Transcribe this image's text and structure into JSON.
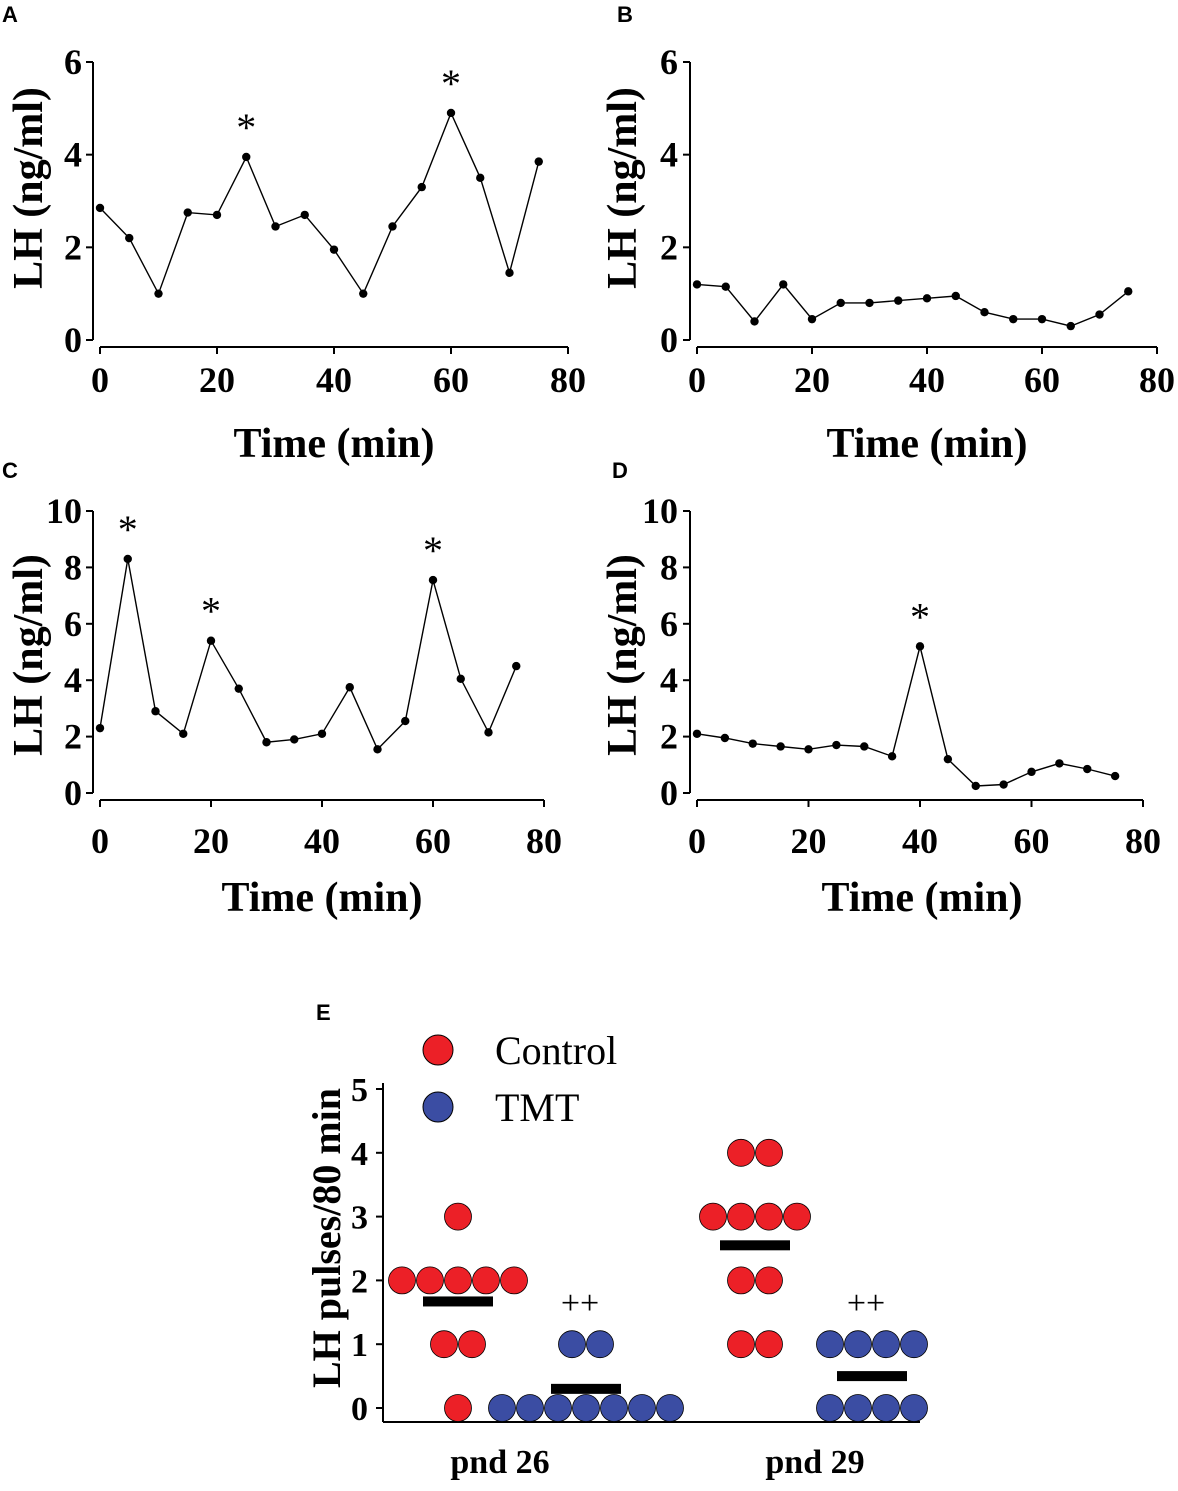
{
  "colors": {
    "control": "#ec2027",
    "tmt": "#3b4da3",
    "ink": "#000000"
  },
  "chart_data": [
    {
      "id": "A",
      "type": "line",
      "panel_label": "A",
      "xlabel": "Time (min)",
      "ylabel": "LH (ng/ml)",
      "xlim": [
        0,
        80
      ],
      "ylim": [
        0,
        6
      ],
      "xticks": [
        "0",
        "20",
        "40",
        "60",
        "80"
      ],
      "yticks": [
        "0",
        "2",
        "4",
        "6"
      ],
      "x": [
        0,
        5,
        10,
        15,
        20,
        25,
        30,
        35,
        40,
        45,
        50,
        55,
        60,
        65,
        70,
        75
      ],
      "values": [
        2.85,
        2.2,
        1.0,
        2.75,
        2.7,
        3.95,
        2.45,
        2.7,
        1.95,
        1.0,
        2.45,
        3.3,
        4.9,
        3.5,
        1.45,
        3.85
      ],
      "pulses": [
        {
          "x": 25,
          "y": 3.95,
          "mark": "*"
        },
        {
          "x": 60,
          "y": 4.9,
          "mark": "*"
        }
      ]
    },
    {
      "id": "B",
      "type": "line",
      "panel_label": "B",
      "xlabel": "Time (min)",
      "ylabel": "LH (ng/ml)",
      "xlim": [
        0,
        80
      ],
      "ylim": [
        0,
        6
      ],
      "xticks": [
        "0",
        "20",
        "40",
        "60",
        "80"
      ],
      "yticks": [
        "0",
        "2",
        "4",
        "6"
      ],
      "x": [
        0,
        5,
        10,
        15,
        20,
        25,
        30,
        35,
        40,
        45,
        50,
        55,
        60,
        65,
        70,
        75
      ],
      "values": [
        1.2,
        1.15,
        0.4,
        1.2,
        0.45,
        0.8,
        0.8,
        0.85,
        0.9,
        0.95,
        0.6,
        0.45,
        0.45,
        0.3,
        0.55,
        1.05
      ],
      "pulses": []
    },
    {
      "id": "C",
      "type": "line",
      "panel_label": "C",
      "xlabel": "Time (min)",
      "ylabel": "LH (ng/ml)",
      "xlim": [
        0,
        80
      ],
      "ylim": [
        0,
        10
      ],
      "xticks": [
        "0",
        "20",
        "40",
        "60",
        "80"
      ],
      "yticks": [
        "0",
        "2",
        "4",
        "6",
        "8",
        "10"
      ],
      "x": [
        0,
        5,
        10,
        15,
        20,
        25,
        30,
        35,
        40,
        45,
        50,
        55,
        60,
        65,
        70,
        75
      ],
      "values": [
        2.3,
        8.3,
        2.9,
        2.1,
        5.4,
        3.7,
        1.8,
        1.9,
        2.1,
        3.75,
        1.55,
        2.55,
        7.55,
        4.05,
        2.15,
        4.5
      ],
      "pulses": [
        {
          "x": 5,
          "y": 8.3,
          "mark": "*"
        },
        {
          "x": 20,
          "y": 5.4,
          "mark": "*"
        },
        {
          "x": 60,
          "y": 7.55,
          "mark": "*"
        }
      ]
    },
    {
      "id": "D",
      "type": "line",
      "panel_label": "D",
      "xlabel": "Time (min)",
      "ylabel": "LH (ng/ml)",
      "xlim": [
        0,
        80
      ],
      "ylim": [
        0,
        10
      ],
      "xticks": [
        "0",
        "20",
        "40",
        "60",
        "80"
      ],
      "yticks": [
        "0",
        "2",
        "4",
        "6",
        "8",
        "10"
      ],
      "x": [
        0,
        5,
        10,
        15,
        20,
        25,
        30,
        35,
        40,
        45,
        50,
        55,
        60,
        65,
        70,
        75
      ],
      "values": [
        2.1,
        1.95,
        1.75,
        1.65,
        1.55,
        1.7,
        1.65,
        1.3,
        5.2,
        1.2,
        0.25,
        0.3,
        0.75,
        1.05,
        0.85,
        0.6
      ],
      "pulses": [
        {
          "x": 40,
          "y": 5.2,
          "mark": "*"
        }
      ]
    },
    {
      "id": "E",
      "type": "scatter",
      "panel_label": "E",
      "ylabel": "LH pulses/80 min",
      "ylim": [
        0,
        5
      ],
      "yticks": [
        "0",
        "1",
        "2",
        "3",
        "4",
        "5"
      ],
      "categories": [
        "pnd 26",
        "pnd 29"
      ],
      "legend": [
        {
          "name": "Control",
          "color": "#ec2027"
        },
        {
          "name": "TMT",
          "color": "#3b4da3"
        }
      ],
      "groups": [
        {
          "category": "pnd 26",
          "series": "Control",
          "color": "#ec2027",
          "values": [
            0,
            1,
            1,
            2,
            2,
            2,
            2,
            2,
            3
          ],
          "mean": 1.67,
          "annotation": ""
        },
        {
          "category": "pnd 26",
          "series": "TMT",
          "color": "#3b4da3",
          "values": [
            0,
            0,
            0,
            0,
            0,
            0,
            0,
            1,
            1
          ],
          "mean": 0.3,
          "annotation": "++"
        },
        {
          "category": "pnd 29",
          "series": "Control",
          "color": "#ec2027",
          "values": [
            1,
            1,
            2,
            2,
            3,
            3,
            3,
            3,
            4,
            4
          ],
          "mean": 2.55,
          "annotation": ""
        },
        {
          "category": "pnd 29",
          "series": "TMT",
          "color": "#3b4da3",
          "values": [
            0,
            0,
            0,
            0,
            1,
            1,
            1,
            1
          ],
          "mean": 0.5,
          "annotation": "++"
        }
      ]
    }
  ]
}
